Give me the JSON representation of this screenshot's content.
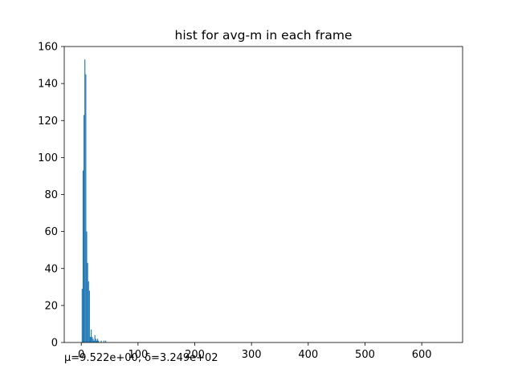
{
  "chart_data": {
    "type": "bar",
    "title": "hist for avg-m in each frame",
    "xlabel": "",
    "ylabel": "",
    "xlim": [
      -30,
      672
    ],
    "ylim": [
      0,
      160
    ],
    "x_ticks": [
      0,
      100,
      200,
      300,
      400,
      500,
      600
    ],
    "y_ticks": [
      0,
      20,
      40,
      60,
      80,
      100,
      120,
      140,
      160
    ],
    "bin_width": 1.6,
    "bins": [
      {
        "x": 1.6,
        "count": 29
      },
      {
        "x": 3.2,
        "count": 93
      },
      {
        "x": 4.8,
        "count": 123
      },
      {
        "x": 6.4,
        "count": 153
      },
      {
        "x": 8.0,
        "count": 145
      },
      {
        "x": 9.6,
        "count": 60
      },
      {
        "x": 11.2,
        "count": 43
      },
      {
        "x": 12.8,
        "count": 33
      },
      {
        "x": 14.4,
        "count": 28
      },
      {
        "x": 16.0,
        "count": 3
      },
      {
        "x": 17.6,
        "count": 7
      },
      {
        "x": 19.2,
        "count": 3
      },
      {
        "x": 20.8,
        "count": 2
      },
      {
        "x": 22.4,
        "count": 1
      },
      {
        "x": 24.0,
        "count": 4
      },
      {
        "x": 25.6,
        "count": 2
      },
      {
        "x": 27.2,
        "count": 1
      },
      {
        "x": 28.8,
        "count": 2
      },
      {
        "x": 30.4,
        "count": 1
      },
      {
        "x": 35.2,
        "count": 1
      },
      {
        "x": 40.0,
        "count": 1
      },
      {
        "x": 43.2,
        "count": 1
      }
    ],
    "bar_color": "#1f77b4",
    "grid": false,
    "annotation": "μ=9.522e+00, δ=3.249e+02"
  }
}
